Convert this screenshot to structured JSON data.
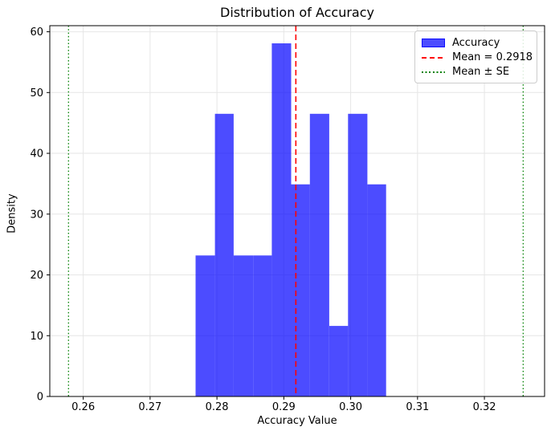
{
  "chart_data": {
    "type": "bar",
    "subtype": "histogram",
    "title": "Distribution of Accuracy",
    "xlabel": "Accuracy Value",
    "ylabel": "Density",
    "xlim": [
      0.255,
      0.329
    ],
    "ylim": [
      0,
      61
    ],
    "xticks": [
      0.26,
      0.27,
      0.28,
      0.29,
      0.3,
      0.31,
      0.32
    ],
    "xtick_labels": [
      "0.26",
      "0.27",
      "0.28",
      "0.29",
      "0.30",
      "0.31",
      "0.32"
    ],
    "yticks": [
      0,
      10,
      20,
      30,
      40,
      50,
      60
    ],
    "ytick_labels": [
      "0",
      "10",
      "20",
      "30",
      "40",
      "50",
      "60"
    ],
    "grid": true,
    "grid_color": "#e6e6e6",
    "spine_color": "#000000",
    "bar_color": "#0000ff",
    "bar_alpha": 0.7,
    "series_label": "Accuracy",
    "bin_edges": [
      0.2768,
      0.2797,
      0.2825,
      0.2854,
      0.2882,
      0.2911,
      0.2939,
      0.2968,
      0.2996,
      0.3025,
      0.3053
    ],
    "densities": [
      23.2,
      46.5,
      23.2,
      23.2,
      58.1,
      34.9,
      46.5,
      11.6,
      46.5,
      34.9
    ],
    "mean_line": {
      "value": 0.2918,
      "label": "Mean = 0.2918",
      "color": "#ff0000",
      "style": "dashed"
    },
    "se_lines": {
      "values": [
        0.2578,
        0.3258
      ],
      "label": "Mean ± SE",
      "color": "#008000",
      "style": "dotted"
    },
    "legend": {
      "position": "upper right",
      "entries": [
        "Accuracy",
        "Mean = 0.2918",
        "Mean ± SE"
      ]
    }
  }
}
